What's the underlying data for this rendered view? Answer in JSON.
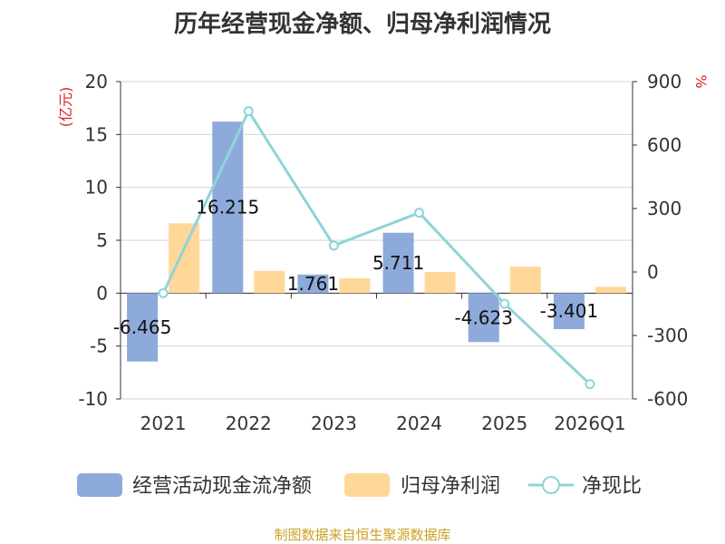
{
  "chart_data": {
    "type": "bar+line",
    "title": "历年经营现金净额、归母净利润情况",
    "categories": [
      "2021",
      "2022",
      "2023",
      "2024",
      "2025",
      "2026Q1"
    ],
    "left_axis": {
      "unit": "(亿元)",
      "ylim": [
        -10,
        20
      ],
      "ticks": [
        20,
        15,
        10,
        5,
        0,
        -5,
        -10
      ]
    },
    "right_axis": {
      "unit": "%",
      "ylim": [
        -600,
        900
      ],
      "ticks": [
        900,
        600,
        300,
        0,
        -300,
        -600
      ]
    },
    "series": [
      {
        "name": "经营活动现金流净额",
        "type": "bar",
        "axis": "left",
        "color": "#8eaadb",
        "values": [
          -6.465,
          16.215,
          1.761,
          5.711,
          -4.623,
          -3.401
        ],
        "labels": [
          "-6.465",
          "16.215",
          "1.761",
          "5.711",
          "-4.623",
          "-3.401"
        ]
      },
      {
        "name": "归母净利润",
        "type": "bar",
        "axis": "left",
        "color": "#ffd899",
        "values": [
          6.6,
          2.1,
          1.4,
          2.0,
          2.5,
          0.6
        ]
      },
      {
        "name": "净现比",
        "type": "line",
        "axis": "right",
        "color": "#8ed4d8",
        "values": [
          -100,
          760,
          125,
          280,
          -150,
          -530
        ]
      }
    ]
  },
  "footer": "制图数据来自恒生聚源数据库"
}
